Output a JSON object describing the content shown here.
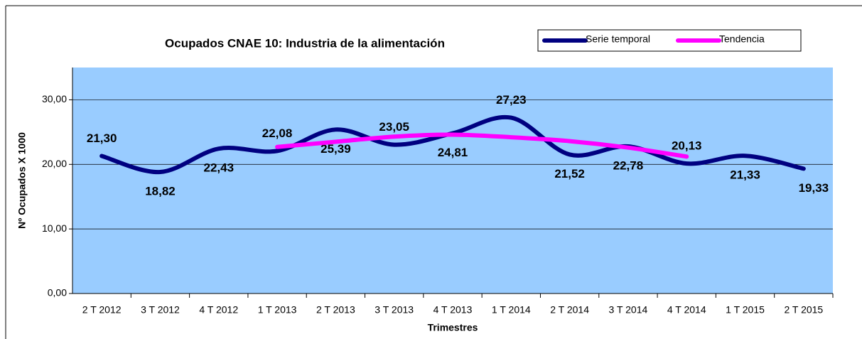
{
  "chart_data": {
    "type": "line",
    "title": "Ocupados CNAE 10: Industria de la alimentación",
    "x_label": "Trimestres",
    "y_label": "Nº Ocupados X 1000",
    "categories": [
      "2 T 2012",
      "3 T 2012",
      "4 T 2012",
      "1 T 2013",
      "2 T 2013",
      "3 T 2013",
      "4 T 2013",
      "1 T 2014",
      "2 T 2014",
      "3 T 2014",
      "4 T 2014",
      "1 T 2015",
      "2 T 2015"
    ],
    "series": [
      {
        "name": "Serie temporal",
        "color": "#000080",
        "values": [
          21.3,
          18.82,
          22.43,
          22.08,
          25.39,
          23.05,
          24.81,
          27.23,
          21.52,
          22.78,
          20.13,
          21.33,
          19.33
        ],
        "value_labels": [
          "21,30",
          "18,82",
          "22,43",
          "22,08",
          "25,39",
          "23,05",
          "24,81",
          "27,23",
          "21,52",
          "22,78",
          "20,13",
          "21,33",
          "19,33"
        ]
      },
      {
        "name": "Tendencia",
        "color": "#ff00ff",
        "values": [
          null,
          null,
          null,
          22.7,
          23.5,
          24.3,
          24.6,
          24.2,
          23.6,
          22.6,
          21.2,
          null,
          null
        ]
      }
    ],
    "ylim": [
      0,
      35
    ],
    "yticks": [
      {
        "value": 0,
        "label": "0,00"
      },
      {
        "value": 10,
        "label": "10,00"
      },
      {
        "value": 20,
        "label": "20,00"
      },
      {
        "value": 30,
        "label": "30,00"
      }
    ],
    "grid": true,
    "legend": "top-right"
  }
}
